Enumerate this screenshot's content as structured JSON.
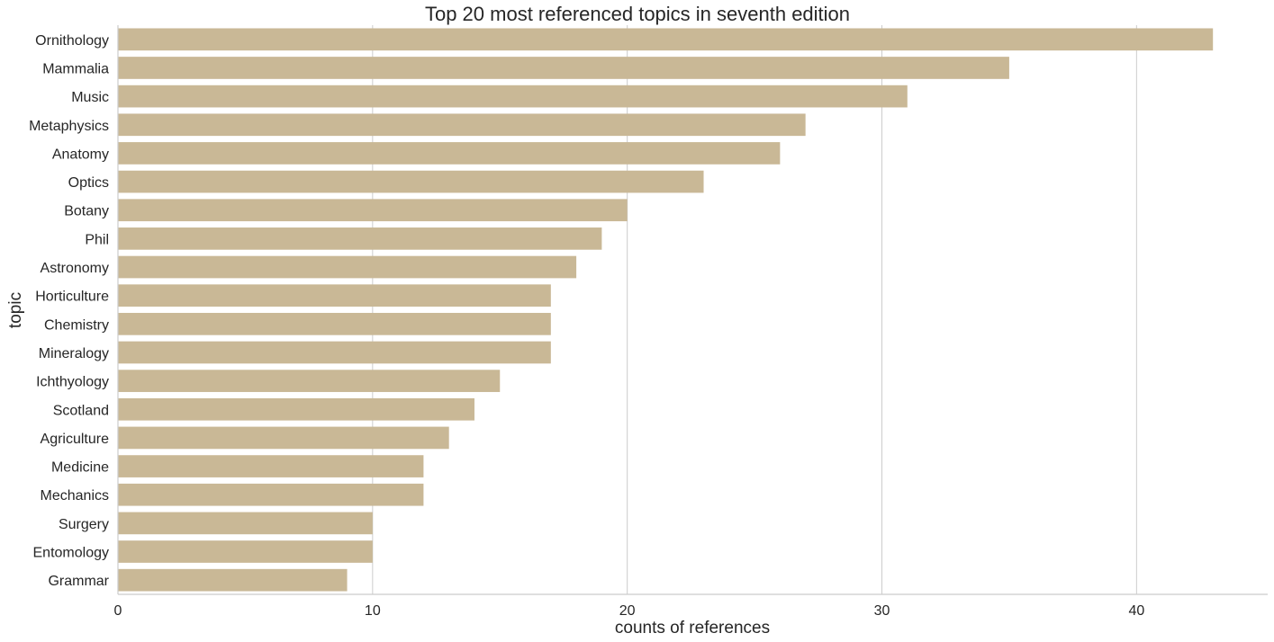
{
  "chart_data": {
    "type": "bar",
    "orientation": "horizontal",
    "title": "Top 20 most referenced topics in seventh edition",
    "xlabel": "counts of references",
    "ylabel": "topic",
    "categories": [
      "Ornithology",
      "Mammalia",
      "Music",
      "Metaphysics",
      "Anatomy",
      "Optics",
      "Botany",
      "Phil",
      "Astronomy",
      "Horticulture",
      "Chemistry",
      "Mineralogy",
      "Ichthyology",
      "Scotland",
      "Agriculture",
      "Medicine",
      "Mechanics",
      "Surgery",
      "Entomology",
      "Grammar"
    ],
    "values": [
      43,
      35,
      31,
      27,
      26,
      23,
      20,
      19,
      18,
      17,
      17,
      17,
      15,
      14,
      13,
      12,
      12,
      10,
      10,
      9
    ],
    "xticks": [
      "0",
      "10",
      "20",
      "30",
      "40"
    ],
    "xlim": [
      0,
      45.15
    ],
    "grid": "vertical",
    "bar_color": "#c9b896",
    "grid_color": "#cccccc",
    "text_color": "#262626"
  }
}
